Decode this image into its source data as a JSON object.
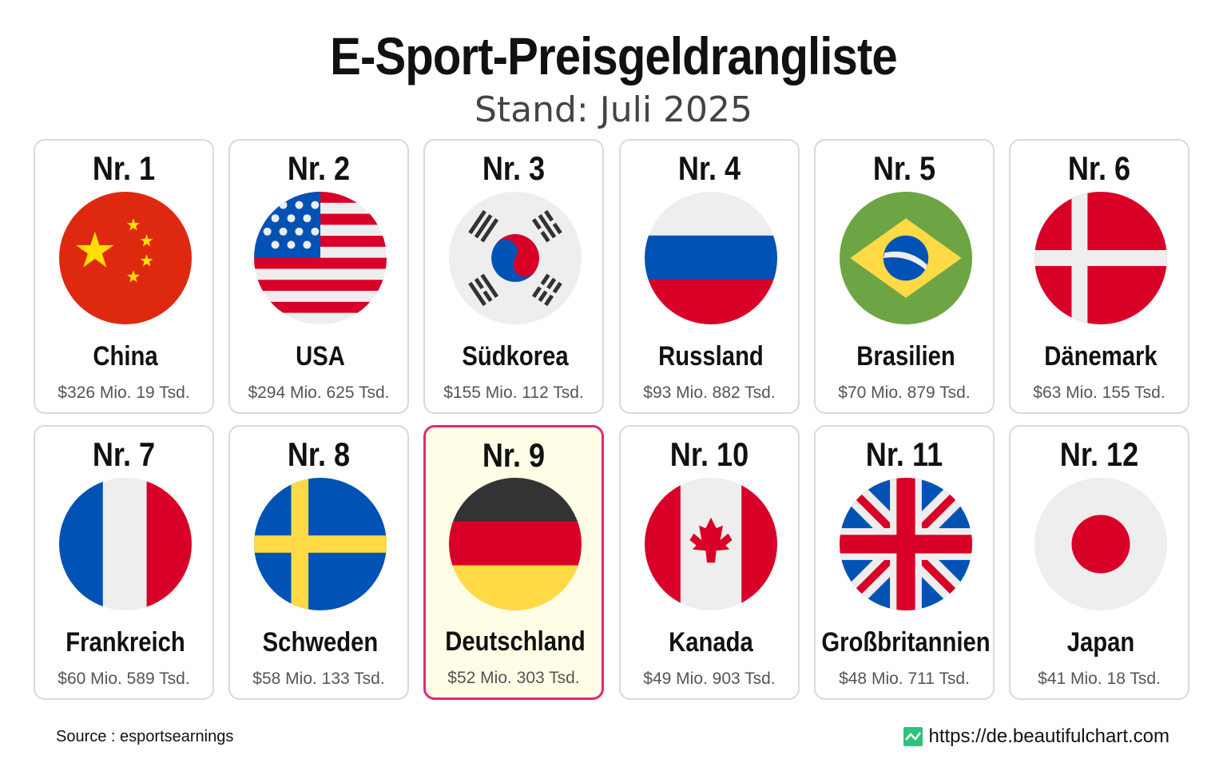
{
  "title": "E-Sport-Preisgeldrangliste",
  "subtitle": "Stand: Juli 2025",
  "rankings": [
    {
      "rank": "Nr. 1",
      "country": "China",
      "prize": "$326 Mio. 19 Tsd.",
      "flag_icon": "flag-china-icon"
    },
    {
      "rank": "Nr. 2",
      "country": "USA",
      "prize": "$294 Mio. 625 Tsd.",
      "flag_icon": "flag-usa-icon"
    },
    {
      "rank": "Nr. 3",
      "country": "Südkorea",
      "prize": "$155 Mio. 112 Tsd.",
      "flag_icon": "flag-south-korea-icon"
    },
    {
      "rank": "Nr. 4",
      "country": "Russland",
      "prize": "$93 Mio. 882 Tsd.",
      "flag_icon": "flag-russia-icon"
    },
    {
      "rank": "Nr. 5",
      "country": "Brasilien",
      "prize": "$70 Mio. 879 Tsd.",
      "flag_icon": "flag-brazil-icon"
    },
    {
      "rank": "Nr. 6",
      "country": "Dänemark",
      "prize": "$63 Mio. 155 Tsd.",
      "flag_icon": "flag-denmark-icon"
    },
    {
      "rank": "Nr. 7",
      "country": "Frankreich",
      "prize": "$60 Mio. 589 Tsd.",
      "flag_icon": "flag-france-icon"
    },
    {
      "rank": "Nr. 8",
      "country": "Schweden",
      "prize": "$58 Mio. 133 Tsd.",
      "flag_icon": "flag-sweden-icon"
    },
    {
      "rank": "Nr. 9",
      "country": "Deutschland",
      "prize": "$52 Mio. 303 Tsd.",
      "flag_icon": "flag-germany-icon",
      "highlighted": true
    },
    {
      "rank": "Nr. 10",
      "country": "Kanada",
      "prize": "$49 Mio. 903 Tsd.",
      "flag_icon": "flag-canada-icon"
    },
    {
      "rank": "Nr. 11",
      "country": "Großbritannien",
      "prize": "$48 Mio. 711 Tsd.",
      "flag_icon": "flag-uk-icon"
    },
    {
      "rank": "Nr. 12",
      "country": "Japan",
      "prize": "$41 Mio. 18 Tsd.",
      "flag_icon": "flag-japan-icon"
    }
  ],
  "footer": {
    "source": "Source : esportsearnings",
    "website": "https://de.beautifulchart.com",
    "logo_icon": "beautifulchart-logo-icon"
  },
  "colors": {
    "highlight_border": "#e0287a",
    "highlight_background": "#fefde6",
    "card_border": "#d9d9d9",
    "logo_green": "#2ec27e"
  }
}
